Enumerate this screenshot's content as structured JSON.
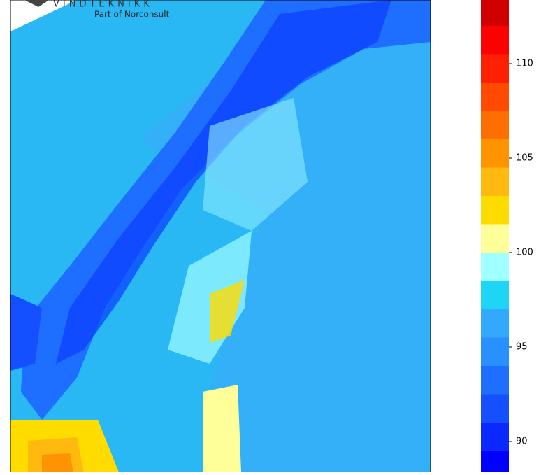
{
  "logo": {
    "name": "VINDTEKNIKK",
    "tagline": "Part of Norconsult"
  },
  "chart_data": {
    "type": "colorbar",
    "levels": [
      88,
      89.5,
      91,
      92.5,
      94,
      95.5,
      97,
      98.5,
      100,
      101.5,
      103,
      104.5,
      106,
      107.5,
      109,
      110.5,
      112,
      113.5,
      115
    ],
    "colors": [
      "#0000ff",
      "#0a28ff",
      "#1450ff",
      "#1e6eff",
      "#2890ff",
      "#32a8ff",
      "#1ed5f5",
      "#a0ffff",
      "#ffff99",
      "#ffdc00",
      "#ffb90f",
      "#ff9400",
      "#ff6e00",
      "#ff4a00",
      "#ff2000",
      "#ff0000",
      "#d00000",
      "#c00000"
    ],
    "ylim": [
      88.37,
      113.37
    ],
    "yticks": [
      90,
      95,
      100,
      105,
      110
    ]
  }
}
